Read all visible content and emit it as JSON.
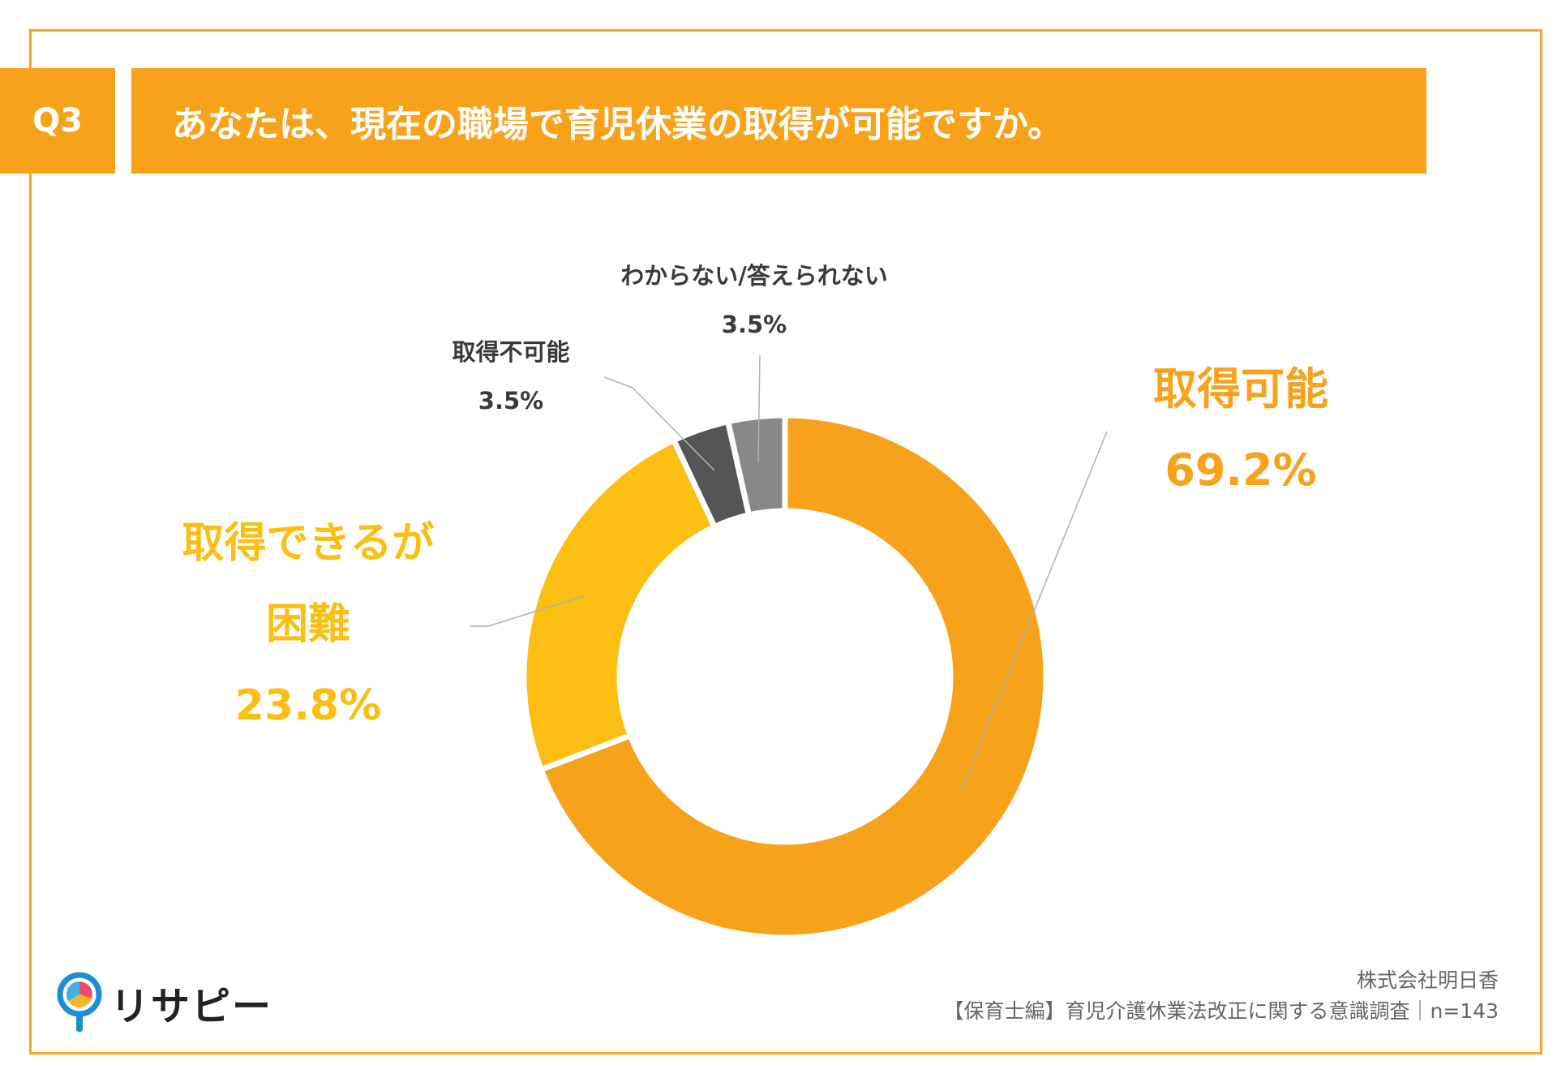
{
  "question": {
    "number": "Q3",
    "text": "あなたは、現在の職場で育児休業の取得が可能ですか。"
  },
  "colors": {
    "frame": "#f7a42a",
    "header": "#f7a21b",
    "slice_possible": "#f7a21b",
    "slice_difficult": "#fbbf14",
    "slice_impossible": "#555555",
    "slice_unknown": "#888888"
  },
  "chart_data": {
    "type": "pie",
    "donut": true,
    "slices": [
      {
        "label": "取得可能",
        "value": 69.2,
        "value_label": "69.2%"
      },
      {
        "label": "取得できるが困難",
        "label_lines": [
          "取得できるが",
          "困難"
        ],
        "value": 23.8,
        "value_label": "23.8%"
      },
      {
        "label": "取得不可能",
        "value": 3.5,
        "value_label": "3.5%"
      },
      {
        "label": "わからない/答えられない",
        "value": 3.5,
        "value_label": "3.5%"
      }
    ]
  },
  "footer": {
    "company": "株式会社明日香",
    "survey": "【保育士編】育児介護休業法改正に関する意識調査｜n=143"
  },
  "logo": {
    "text": "リサピー"
  }
}
